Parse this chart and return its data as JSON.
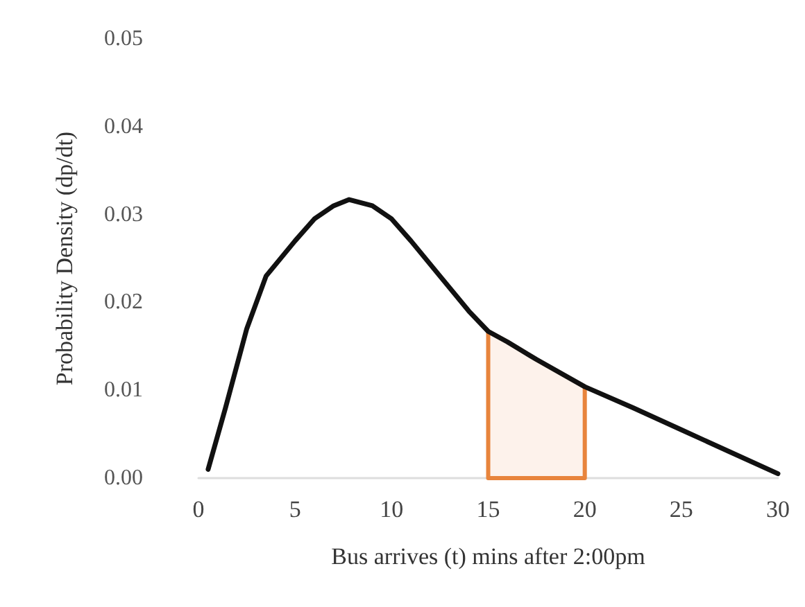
{
  "chart_data": {
    "type": "line",
    "xlabel": "Bus arrives (t) mins after 2:00pm",
    "ylabel": "Probability Density (dp/dt)",
    "xlim": [
      0,
      30
    ],
    "xticks": [
      0,
      5,
      10,
      15,
      20,
      25,
      30
    ],
    "ylim": [
      0,
      0.05
    ],
    "yticks": [
      {
        "value": 0,
        "label": "0.00"
      },
      0.01,
      0.02,
      0.03,
      0.04,
      0.05
    ],
    "grid": false,
    "marker": "none",
    "line_style": "solid",
    "series": [
      {
        "type": "line",
        "color": "#111111",
        "x": [
          0.5,
          1.4,
          2.5,
          3.5,
          5,
          6,
          7,
          7.8,
          9,
          10,
          11,
          12.5,
          14,
          15,
          16,
          17.5,
          20,
          22.5,
          25,
          27.5,
          30
        ],
        "values": [
          0.001,
          0.008,
          0.017,
          0.023,
          0.027,
          0.0295,
          0.031,
          0.0317,
          0.031,
          0.0295,
          0.027,
          0.023,
          0.019,
          0.0167,
          0.0155,
          0.0135,
          0.0104,
          0.008,
          0.0055,
          0.003,
          0.0005
        ]
      },
      {
        "type": "area",
        "color": "#e8843c",
        "x": [
          15,
          15,
          16,
          17.5,
          20,
          20,
          15
        ],
        "values": [
          0,
          0.0167,
          0.0155,
          0.0135,
          0.0104,
          0,
          0
        ]
      }
    ]
  }
}
